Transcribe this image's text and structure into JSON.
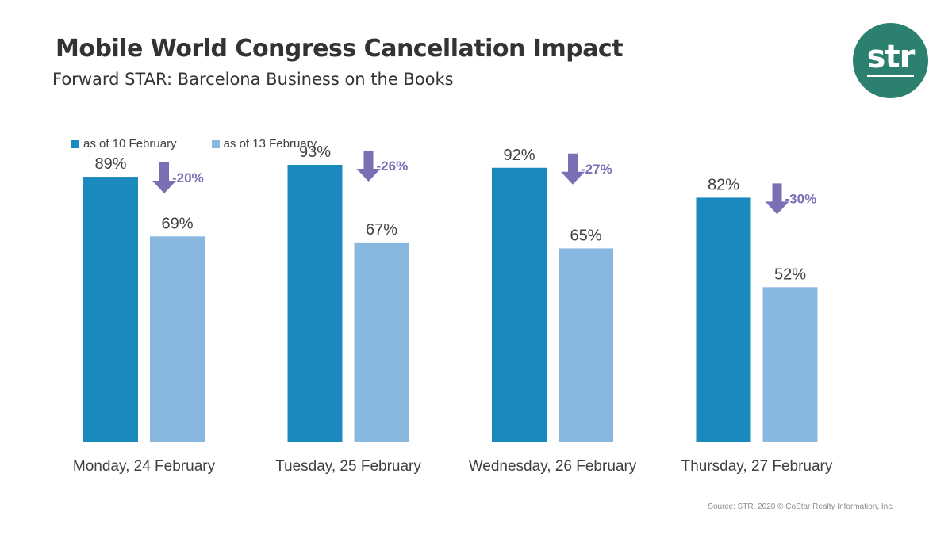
{
  "header": {
    "title": "Mobile World Congress Cancellation Impact",
    "subtitle": "Forward STAR: Barcelona Business on the Books"
  },
  "logo": {
    "text": "str",
    "color": "#2b8070"
  },
  "legend": [
    {
      "label": "as of 10 February",
      "color": "#1a89bd"
    },
    {
      "label": "as of 13 February",
      "color": "#88b8e0"
    }
  ],
  "chart_data": {
    "type": "bar",
    "categories": [
      "Monday, 24 February",
      "Tuesday, 25 February",
      "Wednesday, 26 February",
      "Thursday, 27 February"
    ],
    "series": [
      {
        "name": "as of 10 February",
        "values": [
          89,
          93,
          92,
          82
        ],
        "labels": [
          "89%",
          "93%",
          "92%",
          "82%"
        ],
        "color": "#1a89bd"
      },
      {
        "name": "as of 13 February",
        "values": [
          69,
          67,
          65,
          52
        ],
        "labels": [
          "69%",
          "67%",
          "65%",
          "52%"
        ],
        "color": "#88b8e0"
      }
    ],
    "changes": [
      "-20%",
      "-26%",
      "-27%",
      "-30%"
    ],
    "change_color": "#7a6fb5",
    "ylim": [
      0,
      100
    ],
    "grid": false,
    "legend_position": "top-left"
  },
  "source": "Source: STR. 2020 © CoStar Realty Information, Inc."
}
